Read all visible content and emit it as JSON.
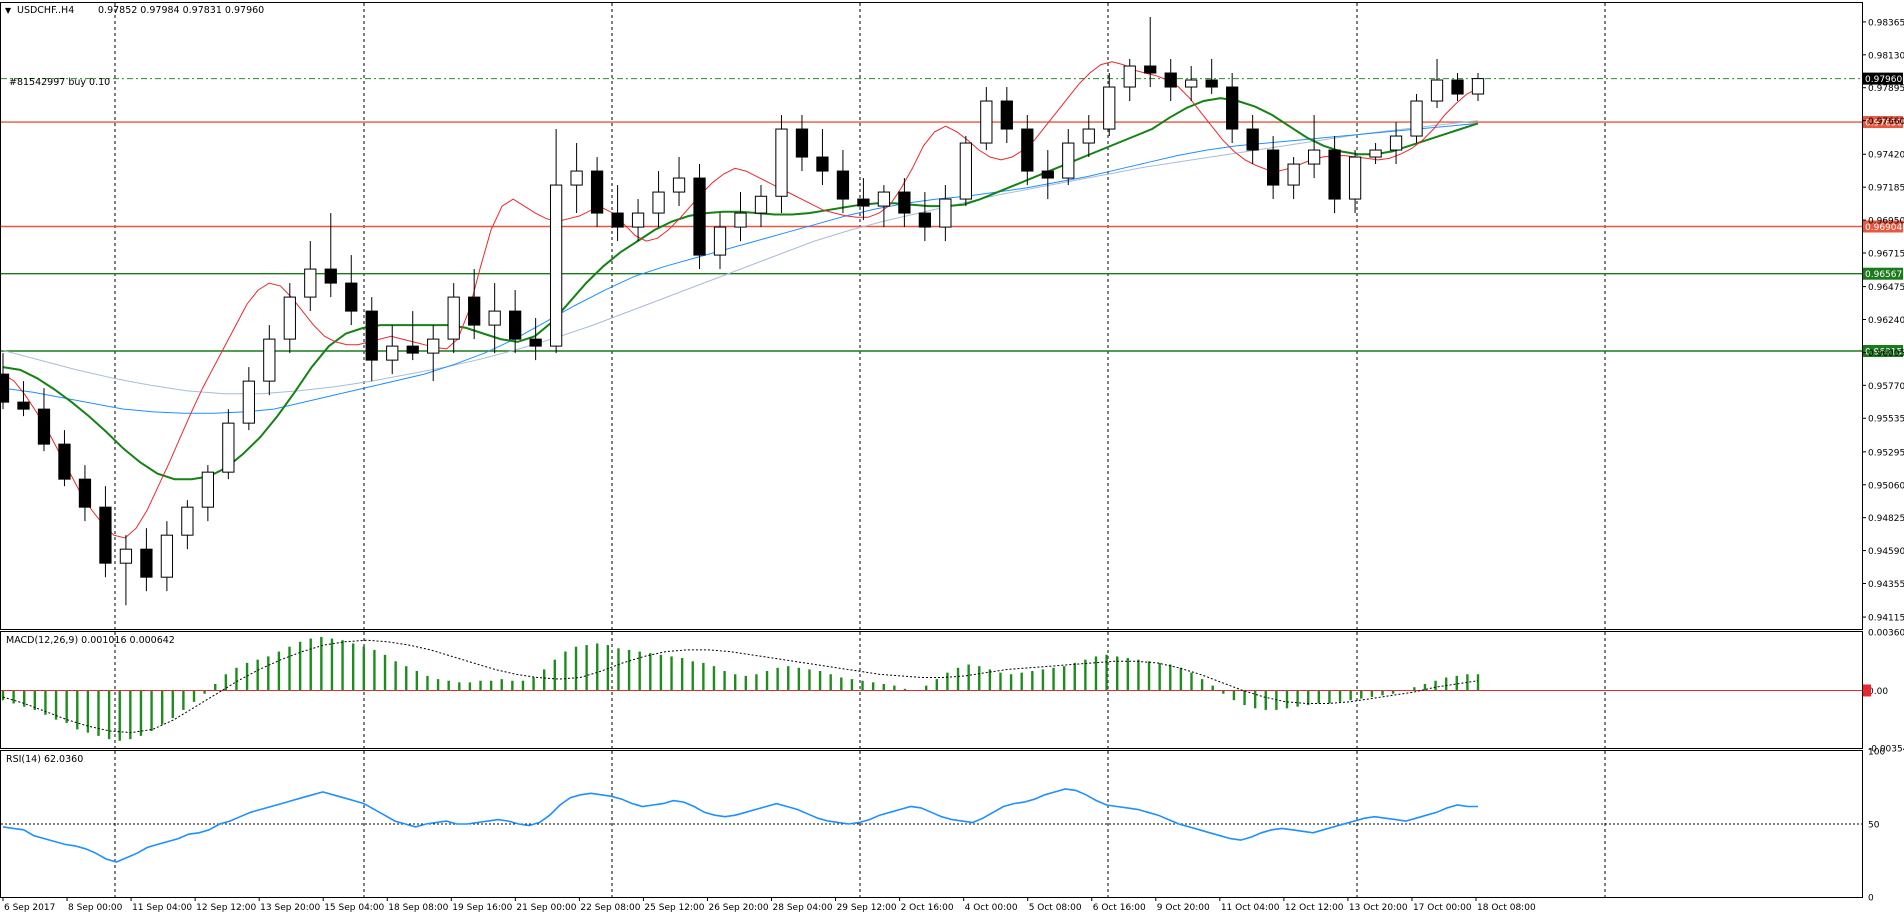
{
  "chart_data": {
    "type": "candlestick",
    "symbol_header": "USDCHF..H4",
    "ohlc_header": "0.97852 0.97984 0.97831 0.97960",
    "order_label": "#81542997 buy 0.10",
    "price_axis_ticks": [
      "0.98365",
      "0.98130",
      "0.97895",
      "0.97660",
      "0.97420",
      "0.97185",
      "0.96950",
      "0.96715",
      "0.96475",
      "0.96240",
      "0.96005",
      "0.95770",
      "0.95535",
      "0.95295",
      "0.95060",
      "0.94825",
      "0.94590",
      "0.94355",
      "0.94115"
    ],
    "price_levels": [
      {
        "label": "0.97960",
        "price": 0.9796,
        "color": "#000000",
        "style": "current"
      },
      {
        "label": "0.97650",
        "price": 0.9765,
        "color": "#e8573f",
        "style": "solid"
      },
      {
        "label": "0.96904",
        "price": 0.96904,
        "color": "#e8573f",
        "style": "solid"
      },
      {
        "label": "0.96567",
        "price": 0.96567,
        "color": "#1b7a1b",
        "style": "solid"
      },
      {
        "label": "0.96015",
        "price": 0.96015,
        "color": "#1b7a1b",
        "style": "solid"
      }
    ],
    "time_labels": [
      "6 Sep 2017",
      "8 Sep 00:00",
      "11 Sep 04:00",
      "12 Sep 12:00",
      "13 Sep 20:00",
      "15 Sep 04:00",
      "18 Sep 08:00",
      "19 Sep 16:00",
      "21 Sep 00:00",
      "22 Sep 08:00",
      "25 Sep 12:00",
      "26 Sep 20:00",
      "28 Sep 04:00",
      "29 Sep 12:00",
      "2 Oct 16:00",
      "4 Oct 00:00",
      "5 Oct 08:00",
      "6 Oct 16:00",
      "9 Oct 20:00",
      "11 Oct 04:00",
      "12 Oct 12:00",
      "13 Oct 20:00",
      "17 Oct 00:00",
      "18 Oct 08:00"
    ],
    "close_path": [
      0.9565,
      0.956,
      0.9555,
      0.9545,
      0.9532,
      0.952,
      0.9505,
      0.949,
      0.9475,
      0.9465,
      0.945,
      0.944,
      0.943,
      0.944,
      0.9455,
      0.947,
      0.9485,
      0.95,
      0.952,
      0.954,
      0.9555,
      0.957,
      0.9585,
      0.96,
      0.961,
      0.962,
      0.9632,
      0.9645,
      0.966,
      0.9668,
      0.9662,
      0.9655,
      0.9645,
      0.963,
      0.9615,
      0.9598,
      0.9595,
      0.96,
      0.9603,
      0.9608,
      0.961,
      0.9605,
      0.96,
      0.961,
      0.9618,
      0.9625,
      0.963,
      0.9625,
      0.962,
      0.9612,
      0.9608,
      0.9605,
      0.961,
      0.964,
      0.968,
      0.9712,
      0.9725,
      0.973,
      0.9718,
      0.97,
      0.9688,
      0.968,
      0.9685,
      0.9695,
      0.9702,
      0.9708,
      0.9712,
      0.9705,
      0.969,
      0.9668,
      0.966,
      0.967,
      0.9685,
      0.97,
      0.9712,
      0.9725,
      0.9738,
      0.9745,
      0.9742,
      0.973,
      0.9718,
      0.9712,
      0.9706,
      0.9702,
      0.9708,
      0.97,
      0.969,
      0.9685,
      0.9692,
      0.97,
      0.971,
      0.973,
      0.975,
      0.9768,
      0.9772,
      0.976,
      0.9745,
      0.973,
      0.9718,
      0.9722,
      0.9735,
      0.9745,
      0.975,
      0.976,
      0.9775,
      0.979,
      0.98,
      0.9805,
      0.9815,
      0.9808,
      0.98,
      0.9795,
      0.9798,
      0.98,
      0.9798,
      0.9795,
      0.9785,
      0.9775,
      0.9762,
      0.9752,
      0.9745,
      0.974,
      0.9735,
      0.973,
      0.9725,
      0.972,
      0.9735,
      0.9745,
      0.975,
      0.9748,
      0.9745,
      0.974,
      0.9738,
      0.9742,
      0.9735,
      0.973,
      0.972,
      0.974,
      0.9748,
      0.975,
      0.9752,
      0.9755,
      0.976,
      0.977,
      0.9782,
      0.9795,
      0.979,
      0.9785,
      0.9796
    ],
    "ma_red": [
      0.9585,
      0.958,
      0.957,
      0.9558,
      0.9545,
      0.953,
      0.9515,
      0.95,
      0.9488,
      0.9478,
      0.947,
      0.9468,
      0.9475,
      0.9488,
      0.9505,
      0.9522,
      0.954,
      0.9558,
      0.9575,
      0.959,
      0.9605,
      0.962,
      0.9635,
      0.9645,
      0.965,
      0.9648,
      0.964,
      0.963,
      0.962,
      0.9612,
      0.9608,
      0.9606,
      0.9606,
      0.9608,
      0.961,
      0.9612,
      0.961,
      0.9608,
      0.9606,
      0.9604,
      0.9603,
      0.961,
      0.963,
      0.966,
      0.9688,
      0.9705,
      0.971,
      0.9705,
      0.97,
      0.9696,
      0.9694,
      0.9696,
      0.9698,
      0.9702,
      0.9704,
      0.97,
      0.9692,
      0.9684,
      0.968,
      0.9682,
      0.9688,
      0.9696,
      0.9705,
      0.9714,
      0.9722,
      0.9728,
      0.9732,
      0.973,
      0.9726,
      0.9722,
      0.9718,
      0.9714,
      0.971,
      0.9706,
      0.9702,
      0.97,
      0.9698,
      0.9697,
      0.9697,
      0.97,
      0.9706,
      0.9718,
      0.9732,
      0.9748,
      0.9758,
      0.9762,
      0.9758,
      0.9752,
      0.9745,
      0.974,
      0.9738,
      0.974,
      0.9745,
      0.9752,
      0.9762,
      0.9772,
      0.9782,
      0.9792,
      0.98,
      0.9806,
      0.9808,
      0.9806,
      0.9802,
      0.98,
      0.9798,
      0.9795,
      0.979,
      0.9782,
      0.9772,
      0.9762,
      0.9752,
      0.9744,
      0.9738,
      0.9734,
      0.9731,
      0.973,
      0.9732,
      0.9735,
      0.9738,
      0.974,
      0.9741,
      0.9741,
      0.974,
      0.9739,
      0.9738,
      0.9739,
      0.9742,
      0.9746,
      0.9752,
      0.976,
      0.977,
      0.9778,
      0.9785,
      0.9789
    ],
    "ma_green": [
      0.959,
      0.9588,
      0.9582,
      0.9574,
      0.9565,
      0.9555,
      0.9544,
      0.9532,
      0.9522,
      0.9514,
      0.951,
      0.951,
      0.9512,
      0.9518,
      0.9528,
      0.954,
      0.9555,
      0.9572,
      0.959,
      0.9605,
      0.9614,
      0.9618,
      0.962,
      0.962,
      0.962,
      0.962,
      0.962,
      0.9618,
      0.9614,
      0.961,
      0.9608,
      0.9612,
      0.9622,
      0.9636,
      0.965,
      0.9662,
      0.9672,
      0.968,
      0.9688,
      0.9694,
      0.9698,
      0.97,
      0.9701,
      0.9701,
      0.97,
      0.9699,
      0.9699,
      0.97,
      0.9702,
      0.9704,
      0.9706,
      0.9707,
      0.9707,
      0.9706,
      0.9705,
      0.9705,
      0.9706,
      0.971,
      0.9715,
      0.972,
      0.9725,
      0.973,
      0.9735,
      0.974,
      0.9745,
      0.975,
      0.9755,
      0.976,
      0.9768,
      0.9775,
      0.978,
      0.9782,
      0.978,
      0.9776,
      0.977,
      0.9762,
      0.9754,
      0.9748,
      0.9744,
      0.9742,
      0.9742,
      0.9744,
      0.9748,
      0.9752,
      0.9756,
      0.976,
      0.9764
    ],
    "ma_blue": [
      0.9575,
      0.9572,
      0.9568,
      0.9564,
      0.956,
      0.9558,
      0.9557,
      0.9557,
      0.9558,
      0.956,
      0.9565,
      0.957,
      0.9575,
      0.958,
      0.9585,
      0.9592,
      0.96,
      0.961,
      0.9622,
      0.9634,
      0.9645,
      0.9655,
      0.9662,
      0.9668,
      0.9674,
      0.968,
      0.9686,
      0.9692,
      0.9698,
      0.9703,
      0.9707,
      0.971,
      0.9712,
      0.9715,
      0.9718,
      0.9722,
      0.9726,
      0.9731,
      0.9736,
      0.9741,
      0.9745,
      0.9748,
      0.975,
      0.9752,
      0.9754,
      0.9756,
      0.9758,
      0.976,
      0.9762,
      0.9764
    ],
    "ma_lightblue": [
      0.9602,
      0.9595,
      0.9588,
      0.9582,
      0.9577,
      0.9573,
      0.9571,
      0.9571,
      0.9573,
      0.9576,
      0.958,
      0.9585,
      0.959,
      0.9596,
      0.9603,
      0.9611,
      0.962,
      0.963,
      0.964,
      0.965,
      0.966,
      0.967,
      0.968,
      0.9688,
      0.9695,
      0.9701,
      0.9707,
      0.9713,
      0.9718,
      0.9723,
      0.9728,
      0.9733,
      0.9737,
      0.9741,
      0.9745,
      0.9749,
      0.9753,
      0.9757,
      0.976,
      0.9763,
      0.9766
    ],
    "macd": {
      "header": "MACD(12,26,9) 0.001016 0.000642",
      "ticks": [
        "0.003606",
        "0.00",
        "-0.003547"
      ],
      "zero_label": "0.00",
      "histogram": [
        -0.0006,
        -0.0008,
        -0.001,
        -0.0012,
        -0.0015,
        -0.0018,
        -0.002,
        -0.0024,
        -0.0026,
        -0.0028,
        -0.003,
        -0.0031,
        -0.003,
        -0.0028,
        -0.0025,
        -0.0021,
        -0.0017,
        -0.0012,
        -0.0007,
        -0.0002,
        0.0004,
        0.001,
        0.0014,
        0.0017,
        0.0019,
        0.0021,
        0.0024,
        0.0027,
        0.003,
        0.0032,
        0.0033,
        0.0032,
        0.0031,
        0.0029,
        0.0027,
        0.0025,
        0.0022,
        0.0018,
        0.0015,
        0.0012,
        0.0009,
        0.0007,
        0.0006,
        0.0005,
        0.0005,
        0.0006,
        0.0006,
        0.0007,
        0.0006,
        0.0006,
        0.0008,
        0.0013,
        0.0019,
        0.0024,
        0.0027,
        0.0028,
        0.0029,
        0.0028,
        0.0026,
        0.0025,
        0.0024,
        0.0023,
        0.0022,
        0.0021,
        0.002,
        0.0018,
        0.0017,
        0.0015,
        0.0012,
        0.001,
        0.0009,
        0.001,
        0.0012,
        0.0014,
        0.0015,
        0.0014,
        0.0013,
        0.0012,
        0.001,
        0.0008,
        0.0007,
        0.0006,
        0.0005,
        0.0004,
        0.0003,
        0.0001,
        0.0,
        0.0003,
        0.0007,
        0.0011,
        0.0014,
        0.0016,
        0.0015,
        0.0013,
        0.0011,
        0.001,
        0.0011,
        0.0012,
        0.0013,
        0.0014,
        0.0015,
        0.0017,
        0.0019,
        0.0021,
        0.0022,
        0.0021,
        0.002,
        0.0019,
        0.0018,
        0.0017,
        0.0016,
        0.0014,
        0.0011,
        0.0007,
        0.0003,
        -0.0002,
        -0.0006,
        -0.0009,
        -0.0011,
        -0.0012,
        -0.0012,
        -0.0011,
        -0.001,
        -0.0009,
        -0.0008,
        -0.0008,
        -0.0007,
        -0.0006,
        -0.0005,
        -0.0004,
        -0.0003,
        -0.0002,
        0.0,
        0.0002,
        0.0004,
        0.0006,
        0.0008,
        0.0009,
        0.001,
        0.001
      ],
      "signal": [
        -0.0004,
        -0.0008,
        -0.0013,
        -0.0018,
        -0.0022,
        -0.0025,
        -0.0026,
        -0.0024,
        -0.0018,
        -0.001,
        -0.0002,
        0.0006,
        0.0013,
        0.0019,
        0.0024,
        0.0028,
        0.003,
        0.0031,
        0.003,
        0.0028,
        0.0025,
        0.0021,
        0.0017,
        0.0013,
        0.001,
        0.0008,
        0.0007,
        0.0008,
        0.0012,
        0.0017,
        0.0021,
        0.0024,
        0.0025,
        0.0025,
        0.0024,
        0.0022,
        0.002,
        0.0018,
        0.0016,
        0.0014,
        0.0012,
        0.001,
        0.0009,
        0.0008,
        0.0008,
        0.0009,
        0.0011,
        0.0013,
        0.0014,
        0.0015,
        0.0016,
        0.0017,
        0.0018,
        0.0018,
        0.0017,
        0.0014,
        0.001,
        0.0005,
        0.0,
        -0.0004,
        -0.0007,
        -0.0008,
        -0.0008,
        -0.0007,
        -0.0005,
        -0.0003,
        -0.0001,
        0.0002,
        0.0004,
        0.0006
      ]
    },
    "rsi": {
      "header": "RSI(14) 62.0360",
      "ticks": [
        "100",
        "50",
        "0"
      ],
      "level": 50,
      "values": [
        48,
        47,
        46,
        42,
        40,
        38,
        36,
        35,
        33,
        30,
        26,
        24,
        27,
        30,
        34,
        36,
        38,
        40,
        43,
        44,
        46,
        50,
        52,
        55,
        58,
        60,
        62,
        64,
        66,
        68,
        70,
        72,
        70,
        68,
        66,
        64,
        60,
        56,
        52,
        50,
        48,
        50,
        51,
        52,
        50,
        50,
        51,
        52,
        53,
        52,
        50,
        49,
        51,
        56,
        63,
        68,
        70,
        71,
        70,
        69,
        67,
        64,
        62,
        63,
        64,
        66,
        65,
        62,
        58,
        56,
        55,
        56,
        58,
        60,
        62,
        64,
        62,
        60,
        57,
        54,
        52,
        51,
        50,
        51,
        53,
        56,
        58,
        60,
        62,
        61,
        58,
        55,
        53,
        52,
        51,
        54,
        58,
        62,
        64,
        65,
        67,
        70,
        72,
        74,
        73,
        70,
        66,
        63,
        62,
        61,
        60,
        58,
        56,
        53,
        50,
        48,
        46,
        44,
        42,
        40,
        39,
        41,
        44,
        46,
        47,
        46,
        45,
        44,
        46,
        48,
        50,
        52,
        54,
        55,
        54,
        53,
        52,
        54,
        56,
        58,
        61,
        63,
        62,
        62
      ],
      "last": 62.036
    },
    "candles": [
      [
        0.9585,
        0.96,
        0.956,
        0.9565
      ],
      [
        0.9565,
        0.958,
        0.9555,
        0.956
      ],
      [
        0.956,
        0.9575,
        0.953,
        0.9535
      ],
      [
        0.9535,
        0.9545,
        0.9505,
        0.951
      ],
      [
        0.951,
        0.952,
        0.948,
        0.949
      ],
      [
        0.949,
        0.9505,
        0.944,
        0.945
      ],
      [
        0.945,
        0.947,
        0.942,
        0.946
      ],
      [
        0.946,
        0.9475,
        0.943,
        0.944
      ],
      [
        0.944,
        0.948,
        0.943,
        0.947
      ],
      [
        0.947,
        0.9495,
        0.946,
        0.949
      ],
      [
        0.949,
        0.952,
        0.948,
        0.9515
      ],
      [
        0.9515,
        0.956,
        0.951,
        0.955
      ],
      [
        0.955,
        0.959,
        0.9545,
        0.958
      ],
      [
        0.958,
        0.962,
        0.957,
        0.961
      ],
      [
        0.961,
        0.965,
        0.96,
        0.964
      ],
      [
        0.964,
        0.968,
        0.963,
        0.966
      ],
      [
        0.966,
        0.97,
        0.964,
        0.965
      ],
      [
        0.965,
        0.967,
        0.962,
        0.963
      ],
      [
        0.963,
        0.964,
        0.958,
        0.9595
      ],
      [
        0.9595,
        0.962,
        0.9585,
        0.9605
      ],
      [
        0.9605,
        0.963,
        0.9595,
        0.96
      ],
      [
        0.96,
        0.962,
        0.958,
        0.961
      ],
      [
        0.961,
        0.965,
        0.96,
        0.964
      ],
      [
        0.964,
        0.966,
        0.961,
        0.962
      ],
      [
        0.962,
        0.965,
        0.96,
        0.963
      ],
      [
        0.963,
        0.9645,
        0.96,
        0.961
      ],
      [
        0.961,
        0.9625,
        0.9595,
        0.9605
      ],
      [
        0.9605,
        0.976,
        0.96,
        0.972
      ],
      [
        0.972,
        0.975,
        0.97,
        0.973
      ],
      [
        0.973,
        0.974,
        0.969,
        0.97
      ],
      [
        0.97,
        0.972,
        0.968,
        0.969
      ],
      [
        0.969,
        0.971,
        0.968,
        0.97
      ],
      [
        0.97,
        0.973,
        0.969,
        0.9715
      ],
      [
        0.9715,
        0.974,
        0.9705,
        0.9725
      ],
      [
        0.9725,
        0.9735,
        0.966,
        0.967
      ],
      [
        0.967,
        0.97,
        0.966,
        0.969
      ],
      [
        0.969,
        0.9715,
        0.968,
        0.97
      ],
      [
        0.97,
        0.972,
        0.969,
        0.9712
      ],
      [
        0.9712,
        0.977,
        0.97,
        0.976
      ],
      [
        0.976,
        0.977,
        0.973,
        0.974
      ],
      [
        0.974,
        0.976,
        0.972,
        0.973
      ],
      [
        0.973,
        0.9745,
        0.97,
        0.971
      ],
      [
        0.971,
        0.9725,
        0.9695,
        0.9705
      ],
      [
        0.9705,
        0.972,
        0.969,
        0.9715
      ],
      [
        0.9715,
        0.9725,
        0.969,
        0.97
      ],
      [
        0.97,
        0.9715,
        0.968,
        0.969
      ],
      [
        0.969,
        0.972,
        0.968,
        0.971
      ],
      [
        0.971,
        0.9755,
        0.9705,
        0.975
      ],
      [
        0.975,
        0.979,
        0.9745,
        0.978
      ],
      [
        0.978,
        0.979,
        0.975,
        0.976
      ],
      [
        0.976,
        0.977,
        0.972,
        0.973
      ],
      [
        0.973,
        0.9745,
        0.971,
        0.9725
      ],
      [
        0.9725,
        0.976,
        0.972,
        0.975
      ],
      [
        0.975,
        0.977,
        0.974,
        0.976
      ],
      [
        0.976,
        0.98,
        0.9755,
        0.979
      ],
      [
        0.979,
        0.981,
        0.978,
        0.9805
      ],
      [
        0.9805,
        0.984,
        0.979,
        0.98
      ],
      [
        0.98,
        0.981,
        0.978,
        0.979
      ],
      [
        0.979,
        0.9805,
        0.978,
        0.9795
      ],
      [
        0.9795,
        0.981,
        0.9785,
        0.979
      ],
      [
        0.979,
        0.98,
        0.975,
        0.976
      ],
      [
        0.976,
        0.977,
        0.9735,
        0.9745
      ],
      [
        0.9745,
        0.9755,
        0.971,
        0.972
      ],
      [
        0.972,
        0.974,
        0.971,
        0.9735
      ],
      [
        0.9735,
        0.977,
        0.9725,
        0.9745
      ],
      [
        0.9745,
        0.9755,
        0.97,
        0.971
      ],
      [
        0.971,
        0.9745,
        0.97,
        0.974
      ],
      [
        0.974,
        0.975,
        0.9735,
        0.9745
      ],
      [
        0.9745,
        0.9765,
        0.9735,
        0.9755
      ],
      [
        0.9755,
        0.9785,
        0.975,
        0.978
      ],
      [
        0.978,
        0.981,
        0.9775,
        0.9795
      ],
      [
        0.9795,
        0.98,
        0.978,
        0.9785
      ],
      [
        0.9785,
        0.98,
        0.978,
        0.9796
      ]
    ]
  }
}
